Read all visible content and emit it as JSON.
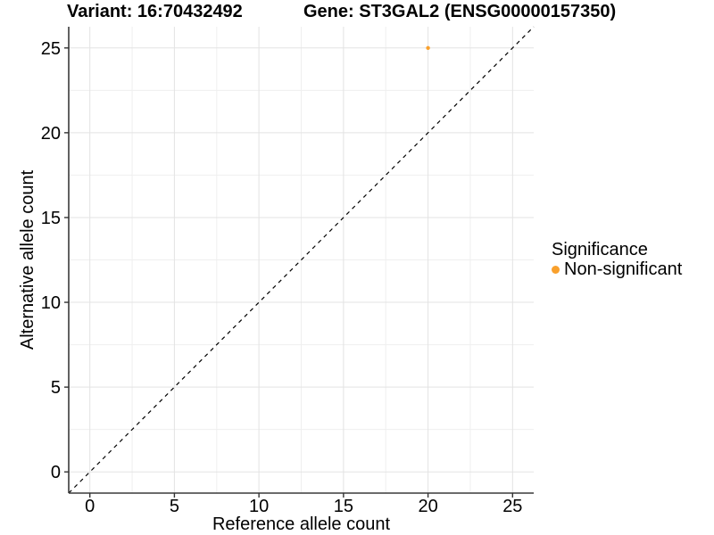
{
  "titles": {
    "variant": "Variant: 16:70432492",
    "gene": "Gene: ST3GAL2 (ENSG00000157350)"
  },
  "legend": {
    "title": "Significance",
    "items": [
      {
        "label": "Non-significant",
        "color": "#F9A02C"
      }
    ]
  },
  "colors": {
    "point": "#F9A02C",
    "grid_major": "#E3E3E3",
    "grid_minor": "#EFEFEF",
    "axis_line": "#3A3A3A",
    "tick_mark": "#333333",
    "text": "#000000",
    "reference_line": "#000000",
    "background": "#FFFFFF"
  },
  "chart_data": {
    "type": "scatter",
    "title": "Variant: 16:70432492   Gene: ST3GAL2 (ENSG00000157350)",
    "xlabel": "Reference allele count",
    "ylabel": "Alternative allele count",
    "xlim": [
      -1.25,
      26.25
    ],
    "ylim": [
      -1.25,
      26.25
    ],
    "x_ticks": [
      0,
      5,
      10,
      15,
      20,
      25
    ],
    "y_ticks": [
      0,
      5,
      10,
      15,
      20,
      25
    ],
    "x_minor_ticks": [
      2.5,
      7.5,
      12.5,
      17.5,
      22.5
    ],
    "y_minor_ticks": [
      2.5,
      7.5,
      12.5,
      17.5,
      22.5
    ],
    "grid": "major-and-minor",
    "legend_position": "right",
    "series": [
      {
        "name": "Non-significant",
        "color": "#F9A02C",
        "points": [
          {
            "x": 20,
            "y": 25
          }
        ]
      }
    ],
    "reference_line": {
      "type": "identity y=x",
      "style": "dashed",
      "color": "#000000"
    }
  }
}
